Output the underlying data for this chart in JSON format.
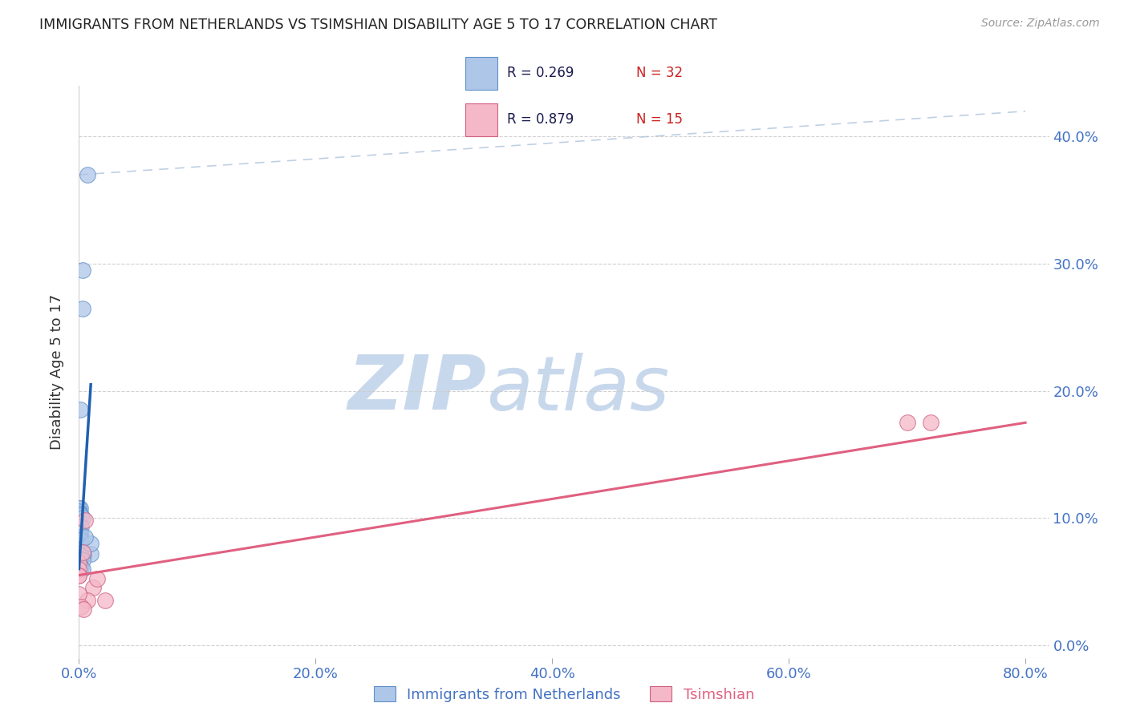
{
  "title": "IMMIGRANTS FROM NETHERLANDS VS TSIMSHIAN DISABILITY AGE 5 TO 17 CORRELATION CHART",
  "source": "Source: ZipAtlas.com",
  "ylabel_label": "Disability Age 5 to 17",
  "legend_label1": "Immigrants from Netherlands",
  "legend_label2": "Tsimshian",
  "legend_r1": "R = 0.269",
  "legend_n1": "N = 32",
  "legend_r2": "R = 0.879",
  "legend_n2": "N = 15",
  "blue_scatter_x": [
    0.007,
    0.003,
    0.003,
    0.001,
    0.001,
    0.0,
    0.0,
    0.001,
    0.002,
    0.003,
    0.002,
    0.001,
    0.001,
    0.001,
    0.002,
    0.0,
    0.0,
    0.001,
    0.002,
    0.003,
    0.01,
    0.004,
    0.002,
    0.001,
    0.003,
    0.0,
    0.0,
    0.001,
    0.002,
    0.003,
    0.01,
    0.005
  ],
  "blue_scatter_y": [
    0.37,
    0.295,
    0.265,
    0.185,
    0.108,
    0.108,
    0.105,
    0.103,
    0.102,
    0.1,
    0.093,
    0.088,
    0.085,
    0.083,
    0.082,
    0.08,
    0.078,
    0.076,
    0.074,
    0.073,
    0.072,
    0.071,
    0.07,
    0.068,
    0.067,
    0.065,
    0.063,
    0.062,
    0.061,
    0.06,
    0.08,
    0.085
  ],
  "pink_scatter_x": [
    0.0,
    0.005,
    0.012,
    0.015,
    0.022,
    0.0,
    0.003,
    0.007,
    0.0,
    0.0,
    0.7,
    0.72,
    0.0,
    0.002,
    0.004
  ],
  "pink_scatter_y": [
    0.065,
    0.098,
    0.045,
    0.052,
    0.035,
    0.06,
    0.073,
    0.035,
    0.04,
    0.055,
    0.175,
    0.175,
    0.055,
    0.03,
    0.028
  ],
  "blue_line_x": [
    0.0,
    0.01
  ],
  "blue_line_y": [
    0.06,
    0.205
  ],
  "pink_line_x": [
    0.0,
    0.8
  ],
  "pink_line_y": [
    0.055,
    0.175
  ],
  "diag_line_x": [
    0.0,
    0.8
  ],
  "diag_line_y": [
    0.37,
    0.42
  ],
  "xlim": [
    0.0,
    0.82
  ],
  "ylim": [
    -0.01,
    0.44
  ],
  "blue_color": "#aec6e8",
  "blue_edge_color": "#6090c8",
  "blue_line_color": "#2060b0",
  "pink_color": "#f4b8c8",
  "pink_edge_color": "#d06080",
  "pink_line_color": "#e06080",
  "axis_label_color": "#4472c4",
  "title_color": "#222222",
  "watermark_zip_color": "#c8d8ec",
  "watermark_atlas_color": "#c8d8ec",
  "background_color": "#ffffff",
  "grid_color": "#cccccc"
}
